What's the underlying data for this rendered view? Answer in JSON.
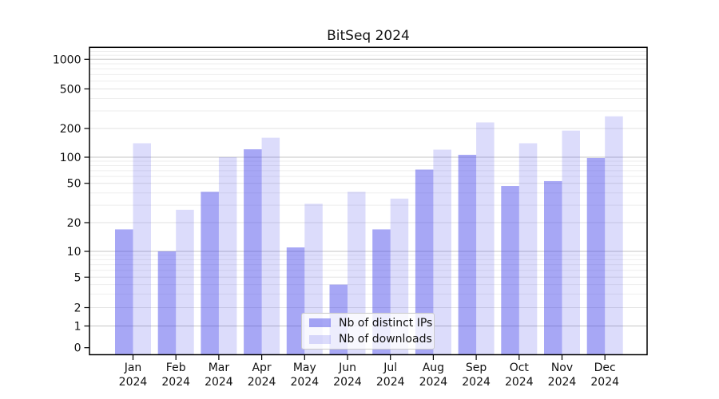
{
  "chart_data": {
    "type": "bar",
    "title": "BitSeq 2024",
    "categories": [
      "Jan 2024",
      "Feb 2024",
      "Mar 2024",
      "Apr 2024",
      "May 2024",
      "Jun 2024",
      "Jul 2024",
      "Aug 2024",
      "Sep 2024",
      "Oct 2024",
      "Nov 2024",
      "Dec 2024"
    ],
    "series": [
      {
        "name": "Nb of distinct IPs",
        "color": "rgba(60,60,232,0.45)",
        "apparent_color": "#a8a8f0",
        "values": [
          17,
          10,
          41,
          121,
          11,
          4,
          17,
          72,
          106,
          47,
          53,
          98
        ]
      },
      {
        "name": "Nb of downloads",
        "color": "rgba(60,60,232,0.18)",
        "apparent_color": "#dcdcf8",
        "values": [
          140,
          27,
          100,
          160,
          31,
          41,
          35,
          120,
          230,
          140,
          190,
          265
        ]
      }
    ],
    "y_axis": {
      "scale": "log-like-with-zero",
      "tick_labels": [
        1000,
        500,
        200,
        100,
        50,
        20,
        10,
        5,
        2,
        1,
        0
      ],
      "ylim": [
        0,
        1300
      ],
      "grid": "horizontal, major lines at powers of 10, faint minor lines"
    },
    "legend": {
      "position": "lower center",
      "entries": [
        "Nb of distinct IPs",
        "Nb of downloads"
      ]
    },
    "colors": {
      "grid_major": "#c6c6c6",
      "grid_mid": "#e2e2e2",
      "grid_minor": "#eeeeee",
      "axis": "#000000",
      "text": "#111111"
    }
  }
}
